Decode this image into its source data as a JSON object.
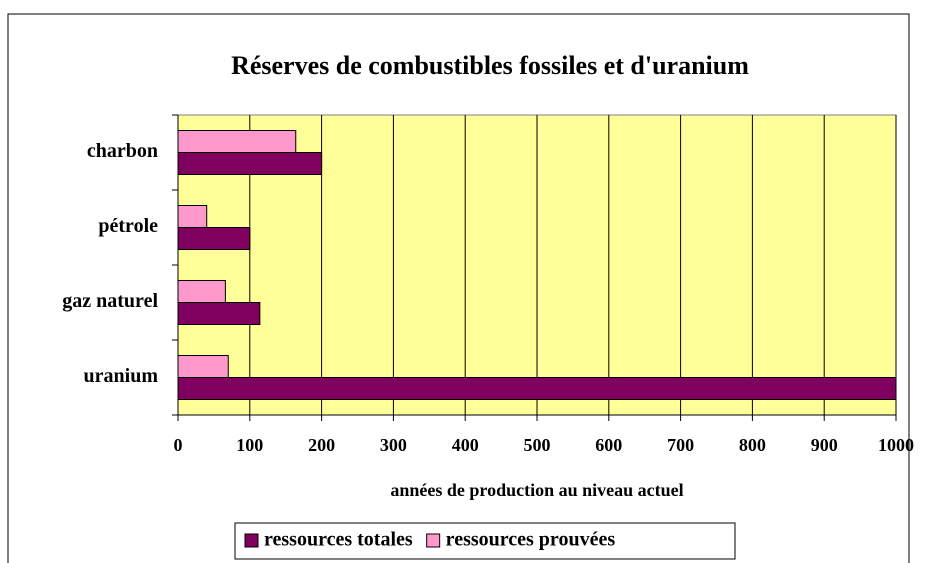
{
  "chart_data": {
    "type": "bar",
    "orientation": "horizontal",
    "title": "Réserves de combustibles fossiles et d'uranium",
    "xlabel": "années de production au niveau actuel",
    "categories": [
      "charbon",
      "pétrole",
      "gaz naturel",
      "uranium"
    ],
    "series": [
      {
        "name": "ressources totales",
        "color": "#800060",
        "values": [
          200,
          100,
          114,
          1000
        ]
      },
      {
        "name": "ressources prouvées",
        "color": "#ff99cc",
        "values": [
          164,
          40,
          66,
          70
        ]
      }
    ],
    "xlim": [
      0,
      1000
    ],
    "xticks": [
      0,
      100,
      200,
      300,
      400,
      500,
      600,
      700,
      800,
      900,
      1000
    ],
    "grid": true,
    "background": "#ffff99",
    "legend": "bottom"
  }
}
